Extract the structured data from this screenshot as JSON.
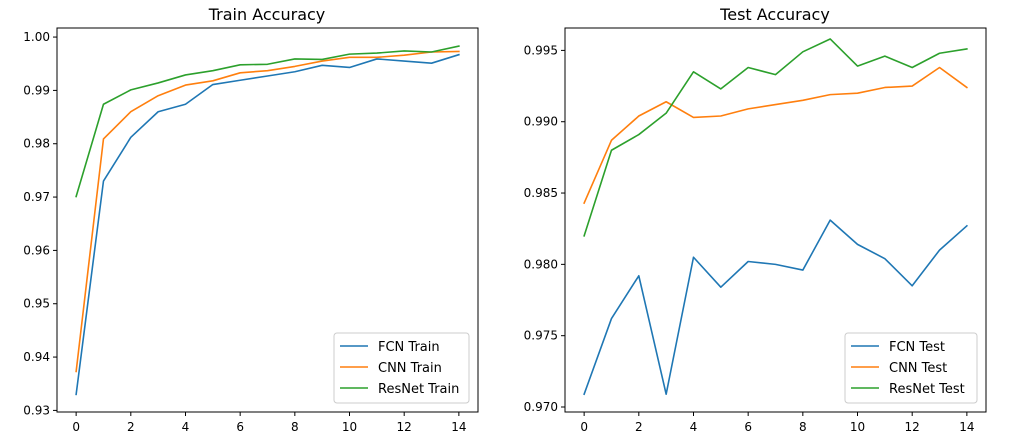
{
  "chart_data": [
    {
      "type": "line",
      "title": "Train Accuracy",
      "xlabel": "",
      "ylabel": "",
      "x": [
        0,
        1,
        2,
        3,
        4,
        5,
        6,
        7,
        8,
        9,
        10,
        11,
        12,
        13,
        14
      ],
      "xlim": [
        -0.7,
        14.7
      ],
      "ylim": [
        0.9297,
        1.0017
      ],
      "xticks": [
        0,
        2,
        4,
        6,
        8,
        10,
        12,
        14
      ],
      "yticks": [
        0.93,
        0.94,
        0.95,
        0.96,
        0.97,
        0.98,
        0.99,
        1.0
      ],
      "ytick_labels": [
        "0.93",
        "0.94",
        "0.95",
        "0.96",
        "0.97",
        "0.98",
        "0.99",
        "1.00"
      ],
      "grid": false,
      "legend_position": "lower-right",
      "series": [
        {
          "name": "FCN Train",
          "color": "#1f77b4",
          "values": [
            0.933,
            0.973,
            0.9812,
            0.986,
            0.9874,
            0.9911,
            0.9919,
            0.9927,
            0.9935,
            0.9947,
            0.9943,
            0.9959,
            0.9955,
            0.9951,
            0.9967
          ]
        },
        {
          "name": "CNN Train",
          "color": "#ff7f0e",
          "values": [
            0.9373,
            0.9809,
            0.986,
            0.989,
            0.991,
            0.9918,
            0.9933,
            0.9937,
            0.9945,
            0.9955,
            0.9962,
            0.9962,
            0.9966,
            0.9972,
            0.9973
          ]
        },
        {
          "name": "ResNet Train",
          "color": "#2ca02c",
          "values": [
            0.9701,
            0.9874,
            0.9901,
            0.9914,
            0.9929,
            0.9937,
            0.9948,
            0.9949,
            0.9959,
            0.9958,
            0.9968,
            0.997,
            0.9974,
            0.9972,
            0.9983
          ]
        }
      ]
    },
    {
      "type": "line",
      "title": "Test Accuracy",
      "xlabel": "",
      "ylabel": "",
      "x": [
        0,
        1,
        2,
        3,
        4,
        5,
        6,
        7,
        8,
        9,
        10,
        11,
        12,
        13,
        14
      ],
      "xlim": [
        -0.7,
        14.7
      ],
      "ylim": [
        0.96965,
        0.99657
      ],
      "xticks": [
        0,
        2,
        4,
        6,
        8,
        10,
        12,
        14
      ],
      "yticks": [
        0.97,
        0.975,
        0.98,
        0.985,
        0.99,
        0.995
      ],
      "ytick_labels": [
        "0.970",
        "0.975",
        "0.980",
        "0.985",
        "0.990",
        "0.995"
      ],
      "grid": false,
      "legend_position": "lower-right",
      "series": [
        {
          "name": "FCN Test",
          "color": "#1f77b4",
          "values": [
            0.9709,
            0.9762,
            0.9792,
            0.9709,
            0.9805,
            0.9784,
            0.9802,
            0.98,
            0.9796,
            0.9831,
            0.9814,
            0.9804,
            0.9785,
            0.981,
            0.9827
          ]
        },
        {
          "name": "CNN Test",
          "color": "#ff7f0e",
          "values": [
            0.9843,
            0.9887,
            0.9904,
            0.9914,
            0.9903,
            0.9904,
            0.9909,
            0.9912,
            0.9915,
            0.9919,
            0.992,
            0.9924,
            0.9925,
            0.9938,
            0.9924
          ]
        },
        {
          "name": "ResNet Test",
          "color": "#2ca02c",
          "values": [
            0.982,
            0.988,
            0.9891,
            0.9906,
            0.9935,
            0.9923,
            0.9938,
            0.9933,
            0.9949,
            0.9958,
            0.9939,
            0.9946,
            0.9938,
            0.9948,
            0.9951
          ]
        }
      ]
    }
  ]
}
